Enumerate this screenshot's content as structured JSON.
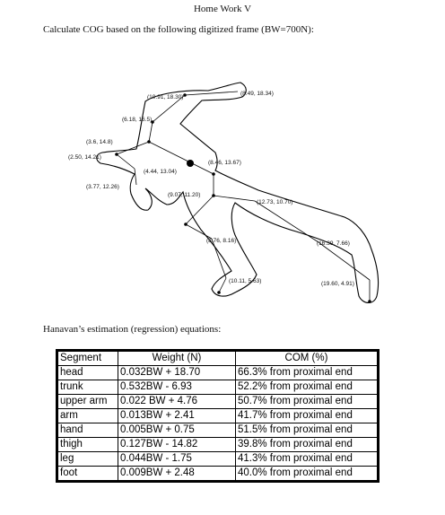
{
  "title": "Home Work V",
  "instruction": "Calculate COG based on the following digitized frame (BW=700N):",
  "figure": {
    "points": [
      {
        "label": "(10.91, 18.30)"
      },
      {
        "label": "(8.49, 18.34)"
      },
      {
        "label": "(6.18, 16.5)"
      },
      {
        "label": "(3.6, 14.8)"
      },
      {
        "label": "(2.50, 14.21)"
      },
      {
        "label": "(4.44, 13.04)"
      },
      {
        "label": "(8.46, 13.67)"
      },
      {
        "label": "(3.77, 12.26)"
      },
      {
        "label": "(9.07, 11.20)"
      },
      {
        "label": "(12.73, 10.70)"
      },
      {
        "label": "(8.76, 8.16)"
      },
      {
        "label": "(16.39, 7.66)"
      },
      {
        "label": "(10.11, 5.63)"
      },
      {
        "label": "(19.60, 4.91)"
      }
    ]
  },
  "subheading": "Hanavan’s estimation (regression) equations:",
  "table": {
    "headers": [
      "Segment",
      "Weight (N)",
      "COM (%)"
    ],
    "rows": [
      [
        "head",
        "0.032BW + 18.70",
        "66.3% from proximal end"
      ],
      [
        "trunk",
        "0.532BW - 6.93",
        "52.2% from proximal end"
      ],
      [
        "upper arm",
        "0.022 BW + 4.76",
        "50.7% from proximal end"
      ],
      [
        "arm",
        "0.013BW + 2.41",
        "41.7% from proximal end"
      ],
      [
        "hand",
        "0.005BW + 0.75",
        "51.5% from proximal end"
      ],
      [
        "thigh",
        "0.127BW - 14.82",
        "39.8% from proximal end"
      ],
      [
        "leg",
        "0.044BW - 1.75",
        "41.3% from proximal end"
      ],
      [
        "foot",
        "0.009BW + 2.48",
        "40.0% from proximal end"
      ]
    ]
  }
}
